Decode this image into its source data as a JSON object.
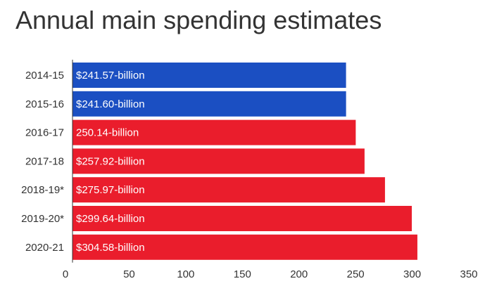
{
  "chart_data": {
    "type": "bar",
    "orientation": "horizontal",
    "title": "Annual main spending estimates",
    "categories": [
      "2014-15",
      "2015-16",
      "2016-17",
      "2017-18",
      "2018-19*",
      "2019-20*",
      "2020-21"
    ],
    "values": [
      241.57,
      241.6,
      250.14,
      257.92,
      275.97,
      299.64,
      304.58
    ],
    "data_labels": [
      "$241.57-billion",
      "$241.60-billion",
      "250.14-billion",
      "$257.92-billion",
      "$275.97-billion",
      "$299.64-billion",
      "$304.58-billion"
    ],
    "bar_colors": [
      "#1b4fc2",
      "#1b4fc2",
      "#ea1d2c",
      "#ea1d2c",
      "#ea1d2c",
      "#ea1d2c",
      "#ea1d2c"
    ],
    "xlim": [
      0,
      350
    ],
    "x_ticks": [
      "0",
      "50",
      "100",
      "150",
      "200",
      "250",
      "300",
      "350"
    ],
    "xlabel": "",
    "ylabel": "",
    "grid": false,
    "legend": "none"
  }
}
